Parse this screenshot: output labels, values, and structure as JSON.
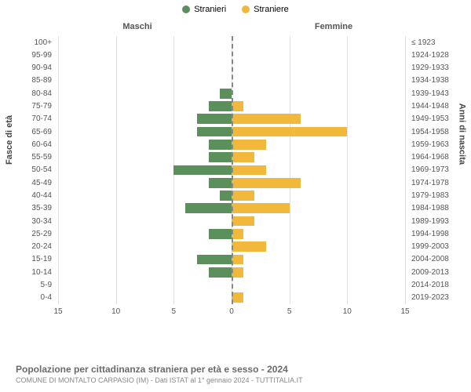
{
  "chart": {
    "type": "population-pyramid",
    "legend": {
      "male": {
        "label": "Stranieri",
        "color": "#5b8f5b"
      },
      "female": {
        "label": "Straniere",
        "color": "#f2b83b"
      }
    },
    "section_left": "Maschi",
    "section_right": "Femmine",
    "yaxis_left_title": "Fasce di età",
    "yaxis_right_title": "Anni di nascita",
    "xlim": [
      -15,
      15
    ],
    "xticks": [
      15,
      10,
      5,
      0,
      5,
      10,
      15
    ],
    "xtick_positions_pct": [
      0,
      16.67,
      33.33,
      50,
      66.67,
      83.33,
      100
    ],
    "grid_positions_pct": [
      0,
      16.67,
      33.33,
      50,
      66.67,
      83.33,
      100
    ],
    "grid_color": "#e0e0e0",
    "center_dash_color": "#888888",
    "background_color": "#ffffff",
    "bar_height_ratio": 0.78,
    "font_family": "Arial, sans-serif",
    "tick_fontsize": 10,
    "label_fontsize": 11,
    "rows": [
      {
        "age": "100+",
        "birth": "≤ 1923",
        "m": 0,
        "f": 0
      },
      {
        "age": "95-99",
        "birth": "1924-1928",
        "m": 0,
        "f": 0
      },
      {
        "age": "90-94",
        "birth": "1929-1933",
        "m": 0,
        "f": 0
      },
      {
        "age": "85-89",
        "birth": "1934-1938",
        "m": 0,
        "f": 0
      },
      {
        "age": "80-84",
        "birth": "1939-1943",
        "m": 1,
        "f": 0
      },
      {
        "age": "75-79",
        "birth": "1944-1948",
        "m": 2,
        "f": 1
      },
      {
        "age": "70-74",
        "birth": "1949-1953",
        "m": 3,
        "f": 6
      },
      {
        "age": "65-69",
        "birth": "1954-1958",
        "m": 3,
        "f": 10
      },
      {
        "age": "60-64",
        "birth": "1959-1963",
        "m": 2,
        "f": 3
      },
      {
        "age": "55-59",
        "birth": "1964-1968",
        "m": 2,
        "f": 2
      },
      {
        "age": "50-54",
        "birth": "1969-1973",
        "m": 5,
        "f": 3
      },
      {
        "age": "45-49",
        "birth": "1974-1978",
        "m": 2,
        "f": 6
      },
      {
        "age": "40-44",
        "birth": "1979-1983",
        "m": 1,
        "f": 2
      },
      {
        "age": "35-39",
        "birth": "1984-1988",
        "m": 4,
        "f": 5
      },
      {
        "age": "30-34",
        "birth": "1989-1993",
        "m": 0,
        "f": 2
      },
      {
        "age": "25-29",
        "birth": "1994-1998",
        "m": 2,
        "f": 1
      },
      {
        "age": "20-24",
        "birth": "1999-2003",
        "m": 0,
        "f": 3
      },
      {
        "age": "15-19",
        "birth": "2004-2008",
        "m": 3,
        "f": 1
      },
      {
        "age": "10-14",
        "birth": "2009-2013",
        "m": 2,
        "f": 1
      },
      {
        "age": "5-9",
        "birth": "2014-2018",
        "m": 0,
        "f": 0
      },
      {
        "age": "0-4",
        "birth": "2019-2023",
        "m": 0,
        "f": 1
      }
    ]
  },
  "footer": {
    "title": "Popolazione per cittadinanza straniera per età e sesso - 2024",
    "subtitle": "COMUNE DI MONTALTO CARPASIO (IM) - Dati ISTAT al 1° gennaio 2024 - TUTTITALIA.IT"
  }
}
